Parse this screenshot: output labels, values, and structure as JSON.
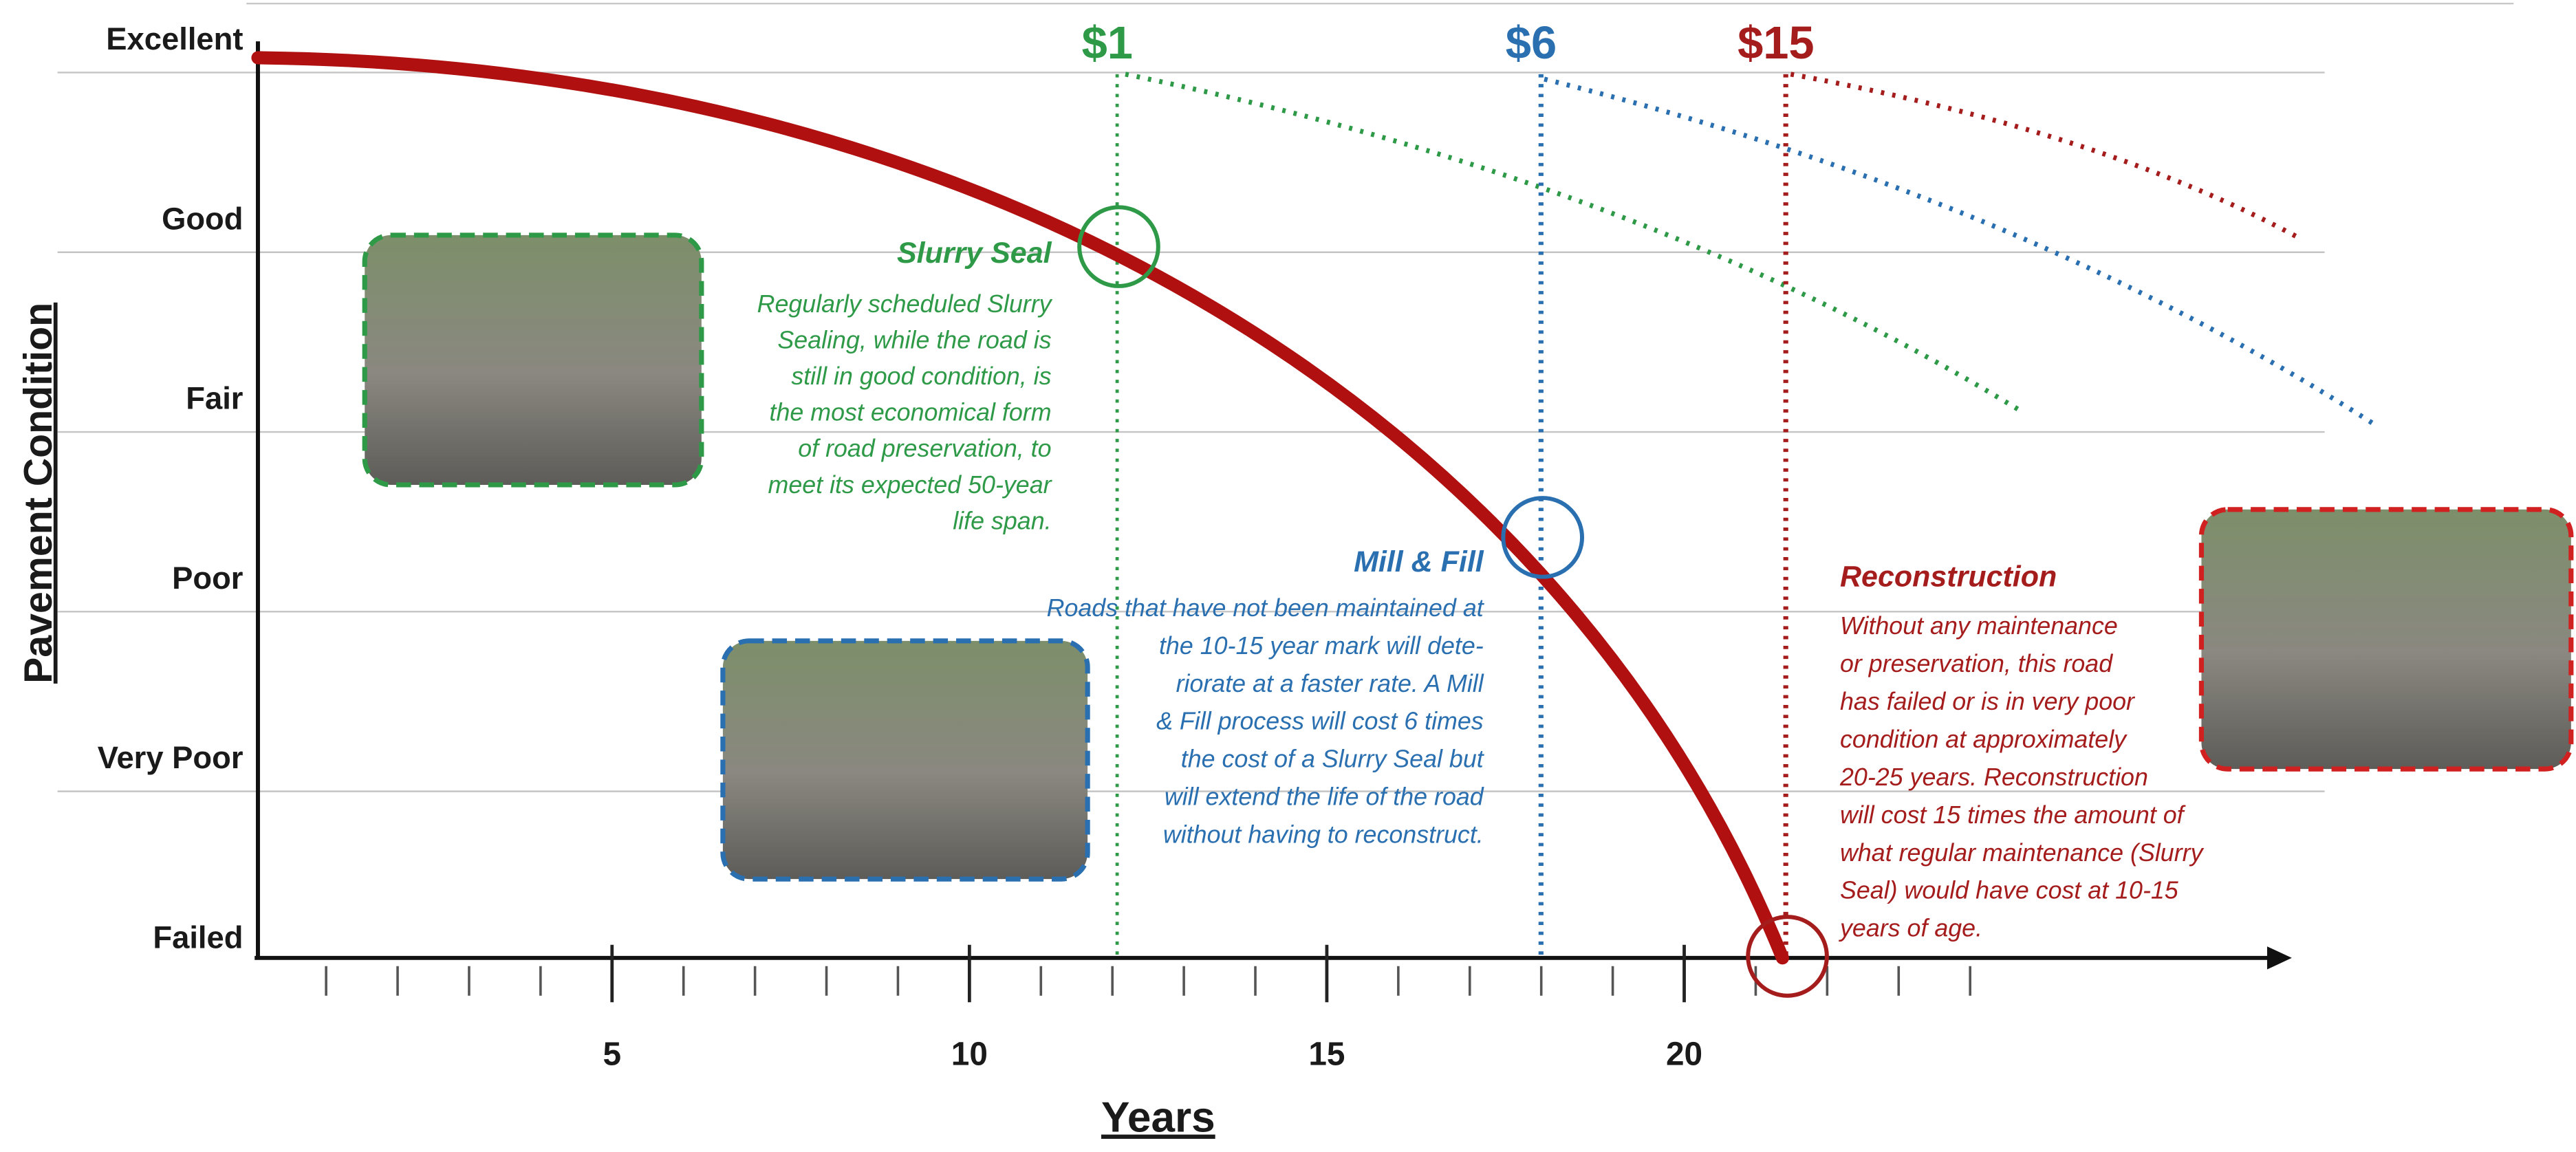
{
  "chart_data": {
    "type": "line",
    "ylabel": "Pavement Condition",
    "xlabel": "Years",
    "ycategories": [
      "Excellent",
      "Good",
      "Fair",
      "Poor",
      "Very Poor",
      "Failed"
    ],
    "xlim": [
      0,
      28.5
    ],
    "xticks": [
      5,
      10,
      15,
      20
    ],
    "xminorticks": [
      1,
      2,
      3,
      4,
      5,
      6,
      7,
      8,
      9,
      10,
      11,
      12,
      13,
      14,
      15,
      16,
      17,
      18,
      19,
      20,
      21,
      22,
      23,
      24
    ],
    "treatments": [
      {
        "cost": "$1",
        "name": "Slurry Seal",
        "color": "#2e9a48",
        "text": [
          "Regularly scheduled Slurry",
          "Sealing, while the road is",
          "still in good condition, is",
          "the most economical form",
          "of  road preservation, to",
          "meet its expected 50-year",
          "life span."
        ]
      },
      {
        "cost": "$6",
        "name": "Mill & Fill",
        "color": "#2a6fb0",
        "text": [
          "Roads that have not been maintained at",
          "the 10-15 year mark will dete-",
          "riorate at a faster rate.  A  Mill",
          "& Fill process will cost 6 times",
          "the cost of a Slurry Seal but",
          "will extend the life of the road",
          "without having to reconstruct."
        ]
      },
      {
        "cost": "$15",
        "name": "Reconstruction",
        "color": "#a51c1c",
        "text": [
          "Without any maintenance",
          "or preservation, this road",
          "has failed or is in very poor",
          "condition at approximately",
          "20-25 years. Reconstruction",
          "will cost 15 times the amount of",
          "what regular maintenance (Slurry",
          "Seal) would have cost at 10-15",
          "years of age."
        ]
      }
    ]
  }
}
